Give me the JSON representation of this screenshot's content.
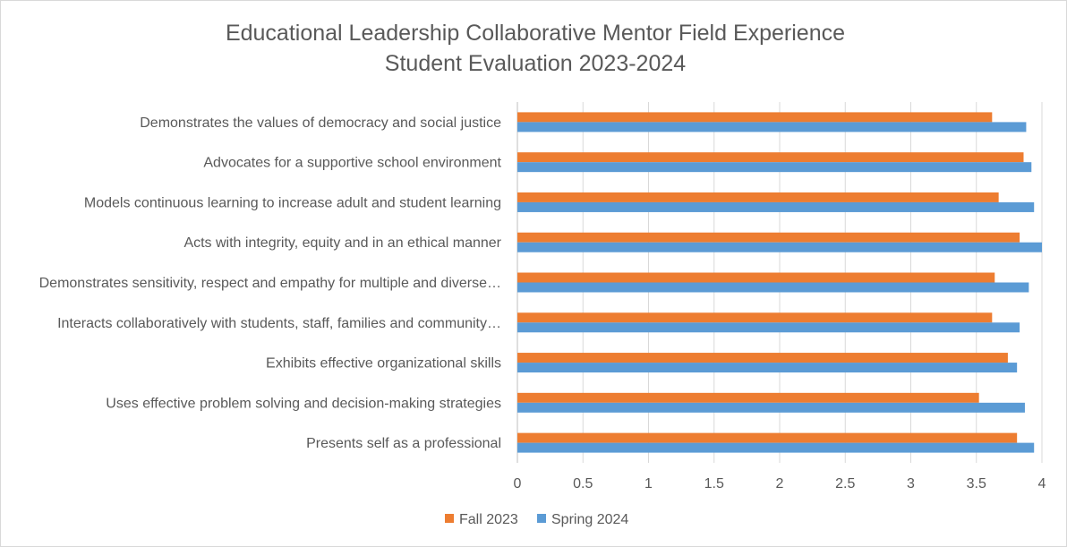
{
  "chart_data": {
    "type": "bar",
    "orientation": "horizontal",
    "title": [
      "Educational Leadership Collaborative Mentor Field Experience",
      "Student Evaluation 2023-2024"
    ],
    "categories": [
      "Demonstrates the values of democracy and social justice",
      "Advocates for a supportive school environment",
      "Models continuous learning to increase adult and student learning",
      "Acts with integrity, equity and in an ethical manner",
      "Demonstrates sensitivity, respect and empathy for multiple and diverse…",
      "Interacts collaboratively with students, staff, families and community…",
      "Exhibits effective organizational skills",
      "Uses effective problem solving and decision-making strategies",
      "Presents self as a professional"
    ],
    "series": [
      {
        "name": "Fall 2023",
        "color": "#ED7D31",
        "values": [
          3.62,
          3.86,
          3.67,
          3.83,
          3.64,
          3.62,
          3.74,
          3.52,
          3.81
        ]
      },
      {
        "name": "Spring 2024",
        "color": "#5B9BD5",
        "values": [
          3.88,
          3.92,
          3.94,
          4.0,
          3.9,
          3.83,
          3.81,
          3.87,
          3.94
        ]
      }
    ],
    "xlim": [
      0,
      4
    ],
    "xticks": [
      "0",
      "0.5",
      "1",
      "1.5",
      "2",
      "2.5",
      "3",
      "3.5",
      "4"
    ],
    "legend": "bottom",
    "gridlines": true,
    "xlabel": "",
    "ylabel": ""
  }
}
